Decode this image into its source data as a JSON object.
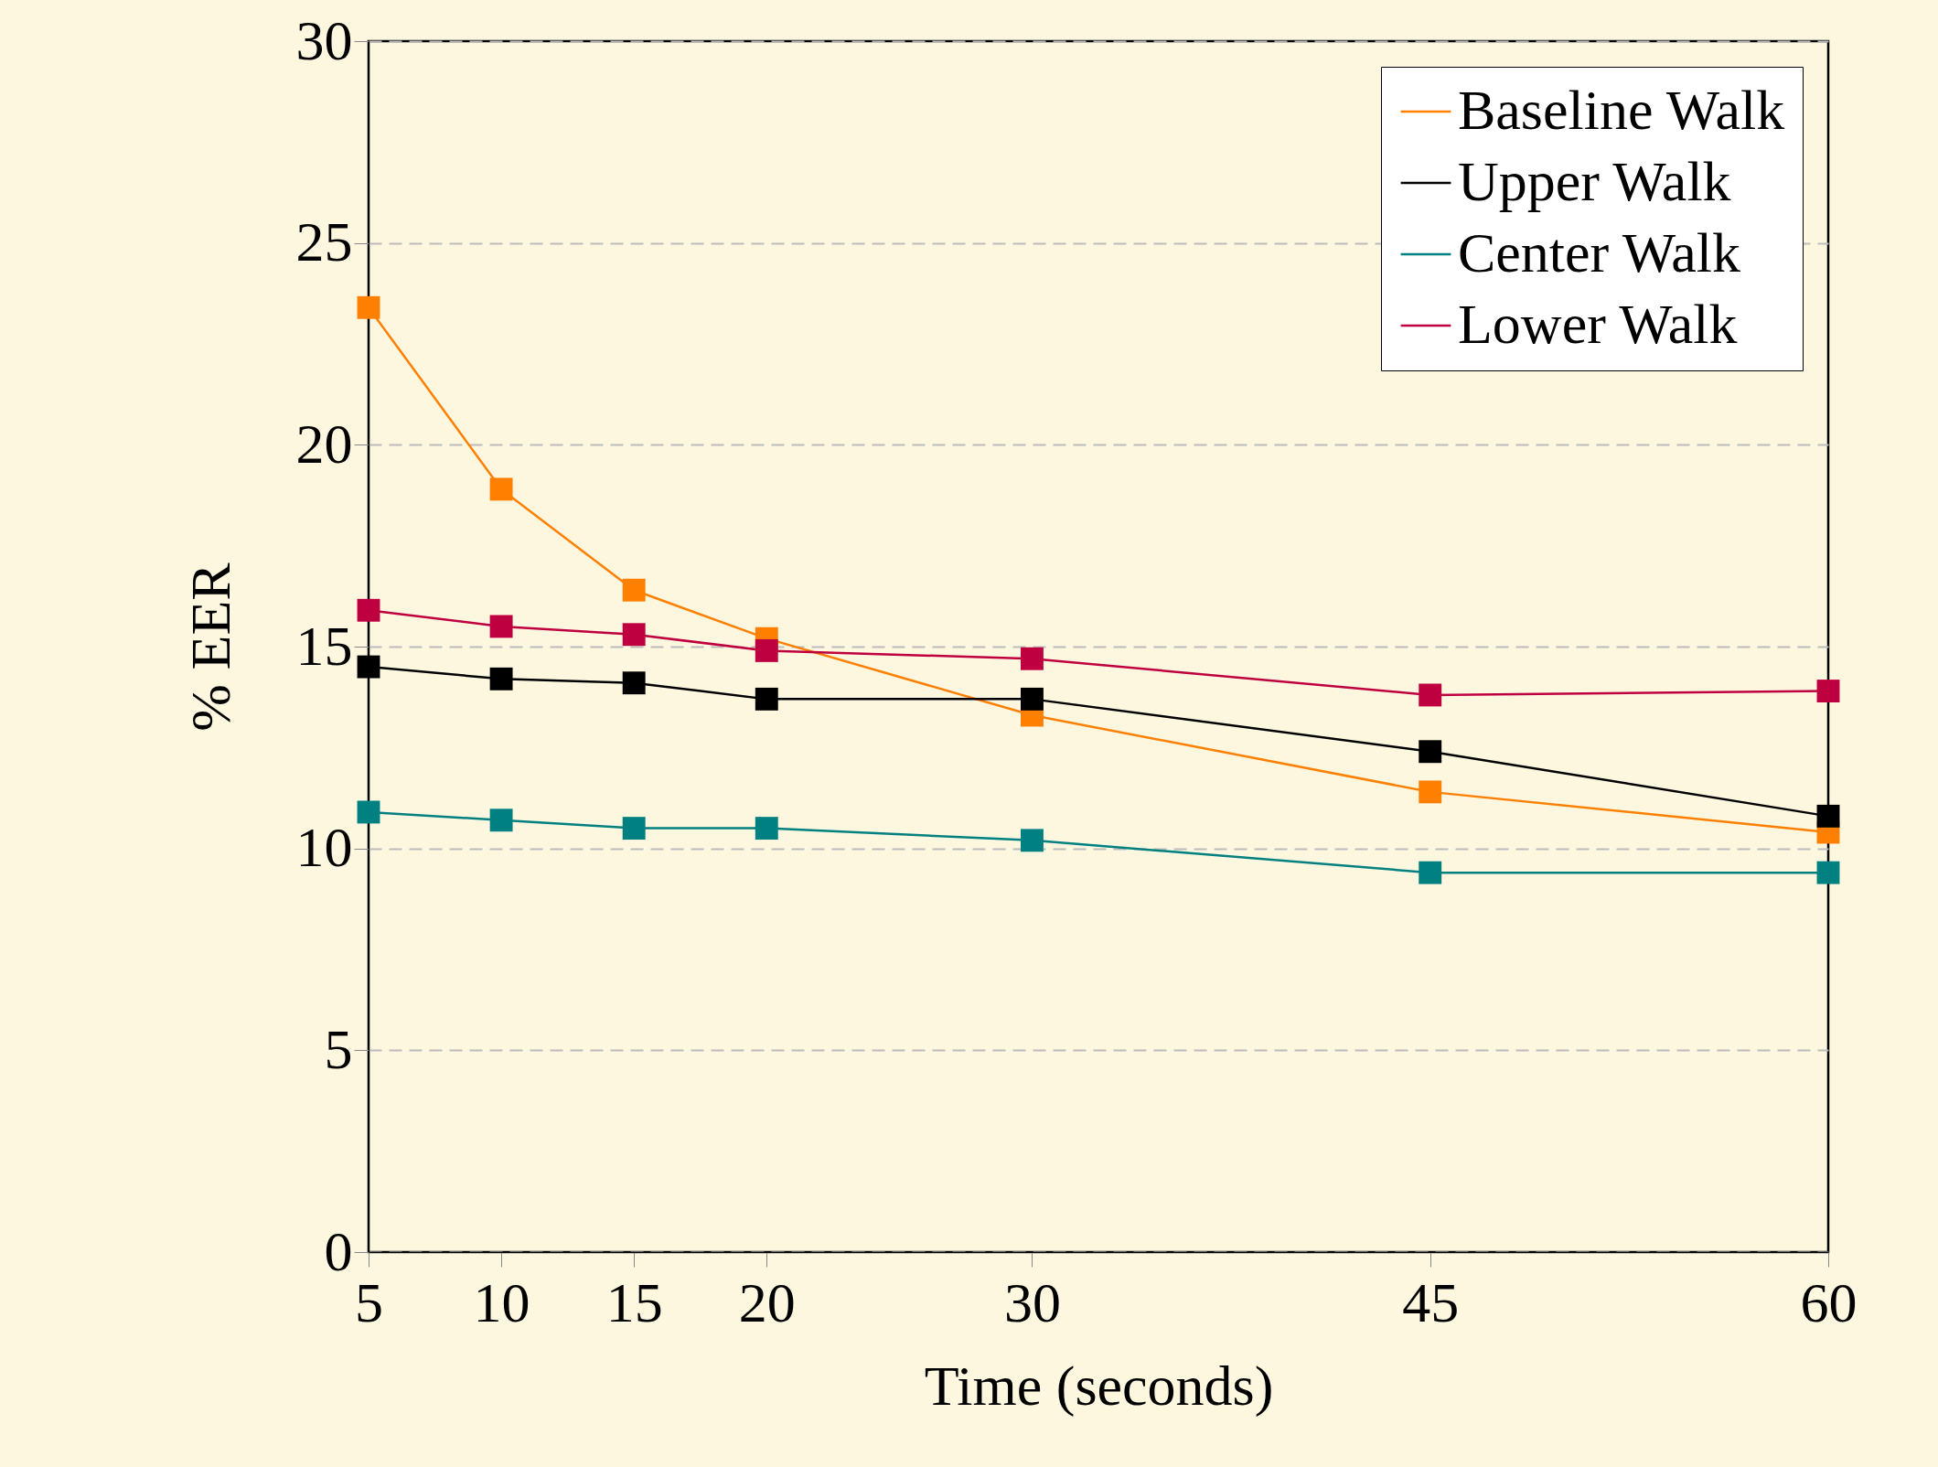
{
  "chart_data": {
    "type": "line",
    "xlabel": "Time (seconds)",
    "ylabel": "% EER",
    "x": [
      5,
      10,
      15,
      20,
      30,
      45,
      60
    ],
    "xlim": [
      5,
      60
    ],
    "xticks": [
      5,
      10,
      15,
      20,
      30,
      45,
      60
    ],
    "ylim": [
      0,
      30
    ],
    "yticks": [
      0,
      5,
      10,
      15,
      20,
      25,
      30
    ],
    "grid": "y",
    "legend": "top right",
    "marker": "square",
    "line_style": "solid",
    "series": [
      {
        "name": "Baseline Walk",
        "color": "#ff8000",
        "values": [
          23.4,
          18.9,
          16.4,
          15.2,
          13.3,
          11.4,
          10.4
        ]
      },
      {
        "name": "Upper Walk",
        "color": "#000000",
        "values": [
          14.5,
          14.2,
          14.1,
          13.7,
          13.7,
          12.4,
          10.8
        ]
      },
      {
        "name": "Center Walk",
        "color": "#008080",
        "values": [
          10.9,
          10.7,
          10.5,
          10.5,
          10.2,
          9.4,
          9.4
        ]
      },
      {
        "name": "Lower Walk",
        "color": "#bf0040",
        "values": [
          15.9,
          15.5,
          15.3,
          14.9,
          14.7,
          13.8,
          13.9
        ]
      }
    ]
  }
}
